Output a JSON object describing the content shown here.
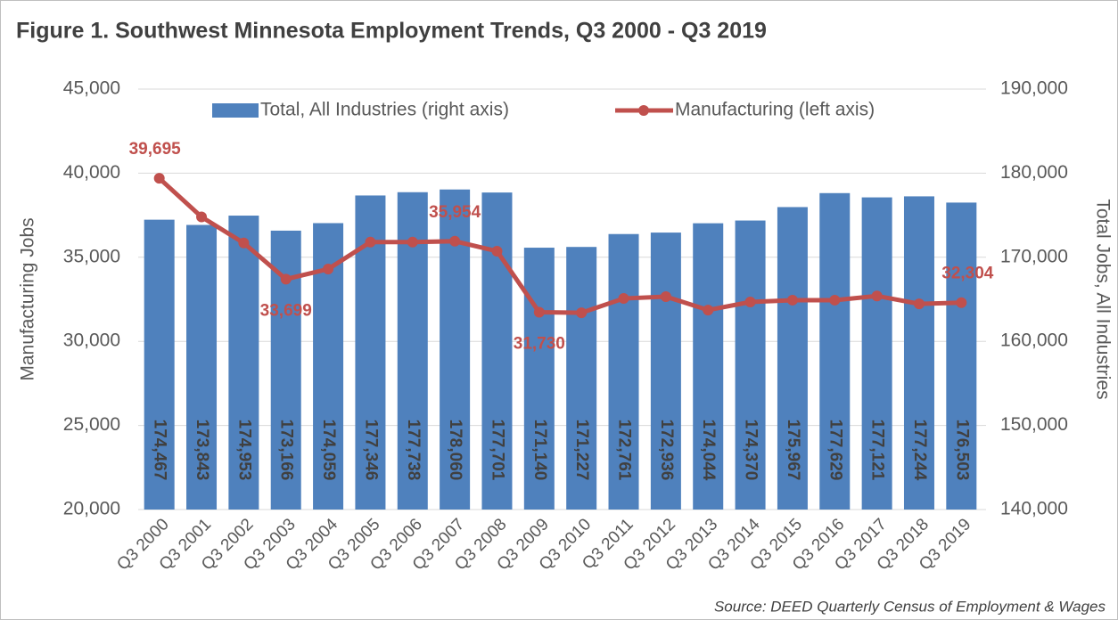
{
  "chart_data": {
    "type": "bar_line",
    "title": "Figure 1. Southwest Minnesota Employment Trends, Q3 2000 - Q3 2019",
    "ylabel": "Manufacturing Jobs",
    "y2label": "Total Jobs, All Industries",
    "source": "Source: DEED Quarterly Census of Employment & Wages",
    "categories": [
      "Q3 2000",
      "Q3 2001",
      "Q3 2002",
      "Q3 2003",
      "Q3 2004",
      "Q3 2005",
      "Q3 2006",
      "Q3 2007",
      "Q3 2008",
      "Q3 2009",
      "Q3 2010",
      "Q3 2011",
      "Q3 2012",
      "Q3 2013",
      "Q3 2014",
      "Q3 2015",
      "Q3 2016",
      "Q3 2017",
      "Q3 2018",
      "Q3 2019"
    ],
    "series": [
      {
        "name": "Total, All Industries (right axis)",
        "type": "bar",
        "axis": "y2",
        "color": "#4f81bd",
        "values": [
          174467,
          173843,
          174953,
          173166,
          174059,
          177346,
          177738,
          178060,
          177701,
          171140,
          171227,
          172761,
          172936,
          174044,
          174370,
          175967,
          177629,
          177121,
          177244,
          176503
        ],
        "value_labels": [
          "174,467",
          "173,843",
          "174,953",
          "173,166",
          "174,059",
          "177,346",
          "177,738",
          "178,060",
          "177,701",
          "171,140",
          "171,227",
          "172,761",
          "172,936",
          "174,044",
          "174,370",
          "175,967",
          "177,629",
          "177,121",
          "177,244",
          "176,503"
        ]
      },
      {
        "name": "Manufacturing (left axis)",
        "type": "line",
        "color": "#c0504d",
        "values": [
          39695,
          37400,
          35850,
          33699,
          34300,
          35900,
          35900,
          35954,
          35360,
          31730,
          31700,
          32550,
          32660,
          31860,
          32340,
          32450,
          32450,
          32700,
          32230,
          32304
        ],
        "value_labels": [
          "39,695",
          null,
          null,
          "33,699",
          null,
          null,
          null,
          "35,954",
          null,
          "31,730",
          null,
          null,
          null,
          null,
          null,
          null,
          null,
          null,
          null,
          "32,304"
        ]
      }
    ],
    "ylim": [
      20000,
      45000
    ],
    "yticks": [
      {
        "value": 20000,
        "label": "20,000"
      },
      {
        "value": 25000,
        "label": "25,000"
      },
      {
        "value": 30000,
        "label": "30,000"
      },
      {
        "value": 35000,
        "label": "35,000"
      },
      {
        "value": 40000,
        "label": "40,000"
      },
      {
        "value": 45000,
        "label": "45,000"
      }
    ],
    "y2lim": [
      140000,
      190000
    ],
    "y2ticks": [
      {
        "value": 140000,
        "label": "140,000"
      },
      {
        "value": 150000,
        "label": "150,000"
      },
      {
        "value": 160000,
        "label": "160,000"
      },
      {
        "value": 170000,
        "label": "170,000"
      },
      {
        "value": 180000,
        "label": "180,000"
      },
      {
        "value": 190000,
        "label": "190,000"
      }
    ],
    "grid": true,
    "legend": "top"
  }
}
